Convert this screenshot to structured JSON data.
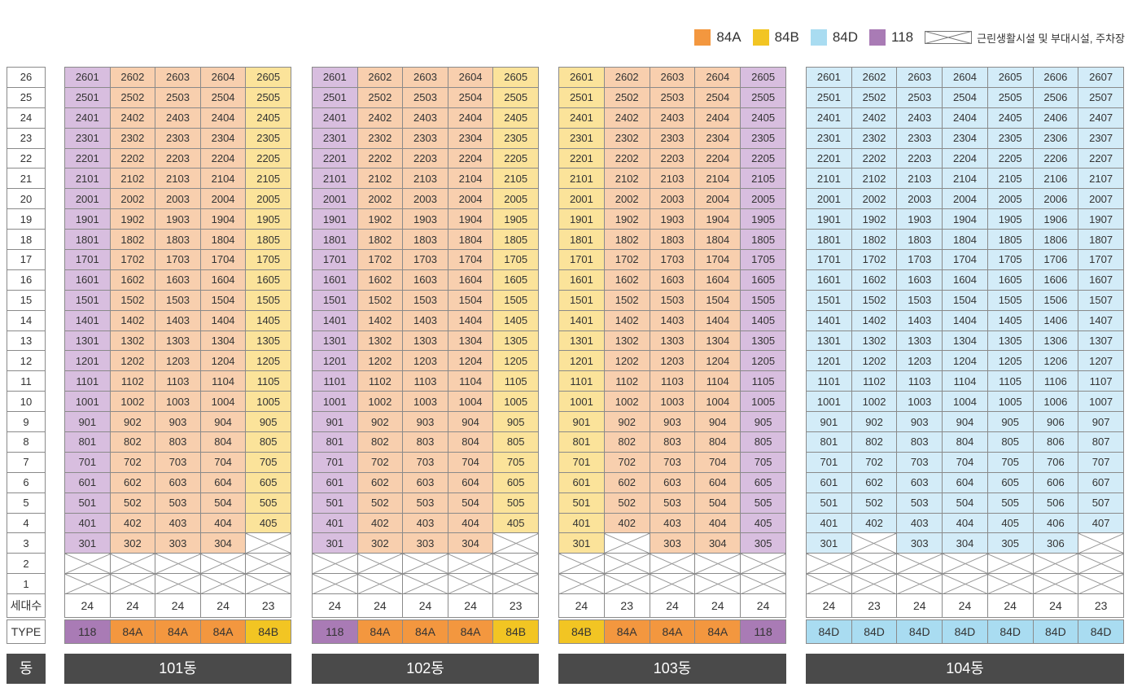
{
  "legend": [
    {
      "label": "84A",
      "color": "#f3973f"
    },
    {
      "label": "84B",
      "color": "#f2c523"
    },
    {
      "label": "84D",
      "color": "#a9dcf1"
    },
    {
      "label": "118",
      "color": "#a97bb5"
    },
    {
      "label": "근린생활시설 및 부대시설, 주차장",
      "icon": "crossed-box"
    }
  ],
  "floors": [
    "26",
    "25",
    "24",
    "23",
    "22",
    "21",
    "20",
    "19",
    "18",
    "17",
    "16",
    "15",
    "14",
    "13",
    "12",
    "11",
    "10",
    "9",
    "8",
    "7",
    "6",
    "5",
    "4",
    "3",
    "2",
    "1"
  ],
  "row_labels": {
    "count": "세대수",
    "type": "TYPE",
    "dong": "동"
  },
  "type_colors": {
    "118": {
      "light": "#d8bedf",
      "dark": "#a97bb5"
    },
    "84A": {
      "light": "#f8cfae",
      "dark": "#f3973f"
    },
    "84B": {
      "light": "#fbe39a",
      "dark": "#f2c523"
    },
    "84D": {
      "light": "#d3ecf8",
      "dark": "#a9dcf1"
    }
  },
  "buildings": [
    {
      "name": "101동",
      "columns": [
        {
          "line": "01",
          "type": "118",
          "count": "24",
          "units_from": 3
        },
        {
          "line": "02",
          "type": "84A",
          "count": "24",
          "units_from": 3
        },
        {
          "line": "03",
          "type": "84A",
          "count": "24",
          "units_from": 3
        },
        {
          "line": "04",
          "type": "84A",
          "count": "24",
          "units_from": 3
        },
        {
          "line": "05",
          "type": "84B",
          "count": "23",
          "units_from": 4
        }
      ]
    },
    {
      "name": "102동",
      "columns": [
        {
          "line": "01",
          "type": "118",
          "count": "24",
          "units_from": 3
        },
        {
          "line": "02",
          "type": "84A",
          "count": "24",
          "units_from": 3
        },
        {
          "line": "03",
          "type": "84A",
          "count": "24",
          "units_from": 3
        },
        {
          "line": "04",
          "type": "84A",
          "count": "24",
          "units_from": 3
        },
        {
          "line": "05",
          "type": "84B",
          "count": "23",
          "units_from": 4
        }
      ]
    },
    {
      "name": "103동",
      "columns": [
        {
          "line": "01",
          "type": "84B",
          "count": "24",
          "units_from": 3
        },
        {
          "line": "02",
          "type": "84A",
          "count": "23",
          "units_from": 4
        },
        {
          "line": "03",
          "type": "84A",
          "count": "24",
          "units_from": 3
        },
        {
          "line": "04",
          "type": "84A",
          "count": "24",
          "units_from": 3
        },
        {
          "line": "05",
          "type": "118",
          "count": "24",
          "units_from": 3
        }
      ]
    },
    {
      "name": "104동",
      "columns": [
        {
          "line": "01",
          "type": "84D",
          "count": "24",
          "units_from": 3
        },
        {
          "line": "02",
          "type": "84D",
          "count": "23",
          "units_from": 4
        },
        {
          "line": "03",
          "type": "84D",
          "count": "24",
          "units_from": 3
        },
        {
          "line": "04",
          "type": "84D",
          "count": "24",
          "units_from": 3
        },
        {
          "line": "05",
          "type": "84D",
          "count": "24",
          "units_from": 3
        },
        {
          "line": "06",
          "type": "84D",
          "count": "24",
          "units_from": 3
        },
        {
          "line": "07",
          "type": "84D",
          "count": "23",
          "units_from": 4
        }
      ]
    }
  ]
}
